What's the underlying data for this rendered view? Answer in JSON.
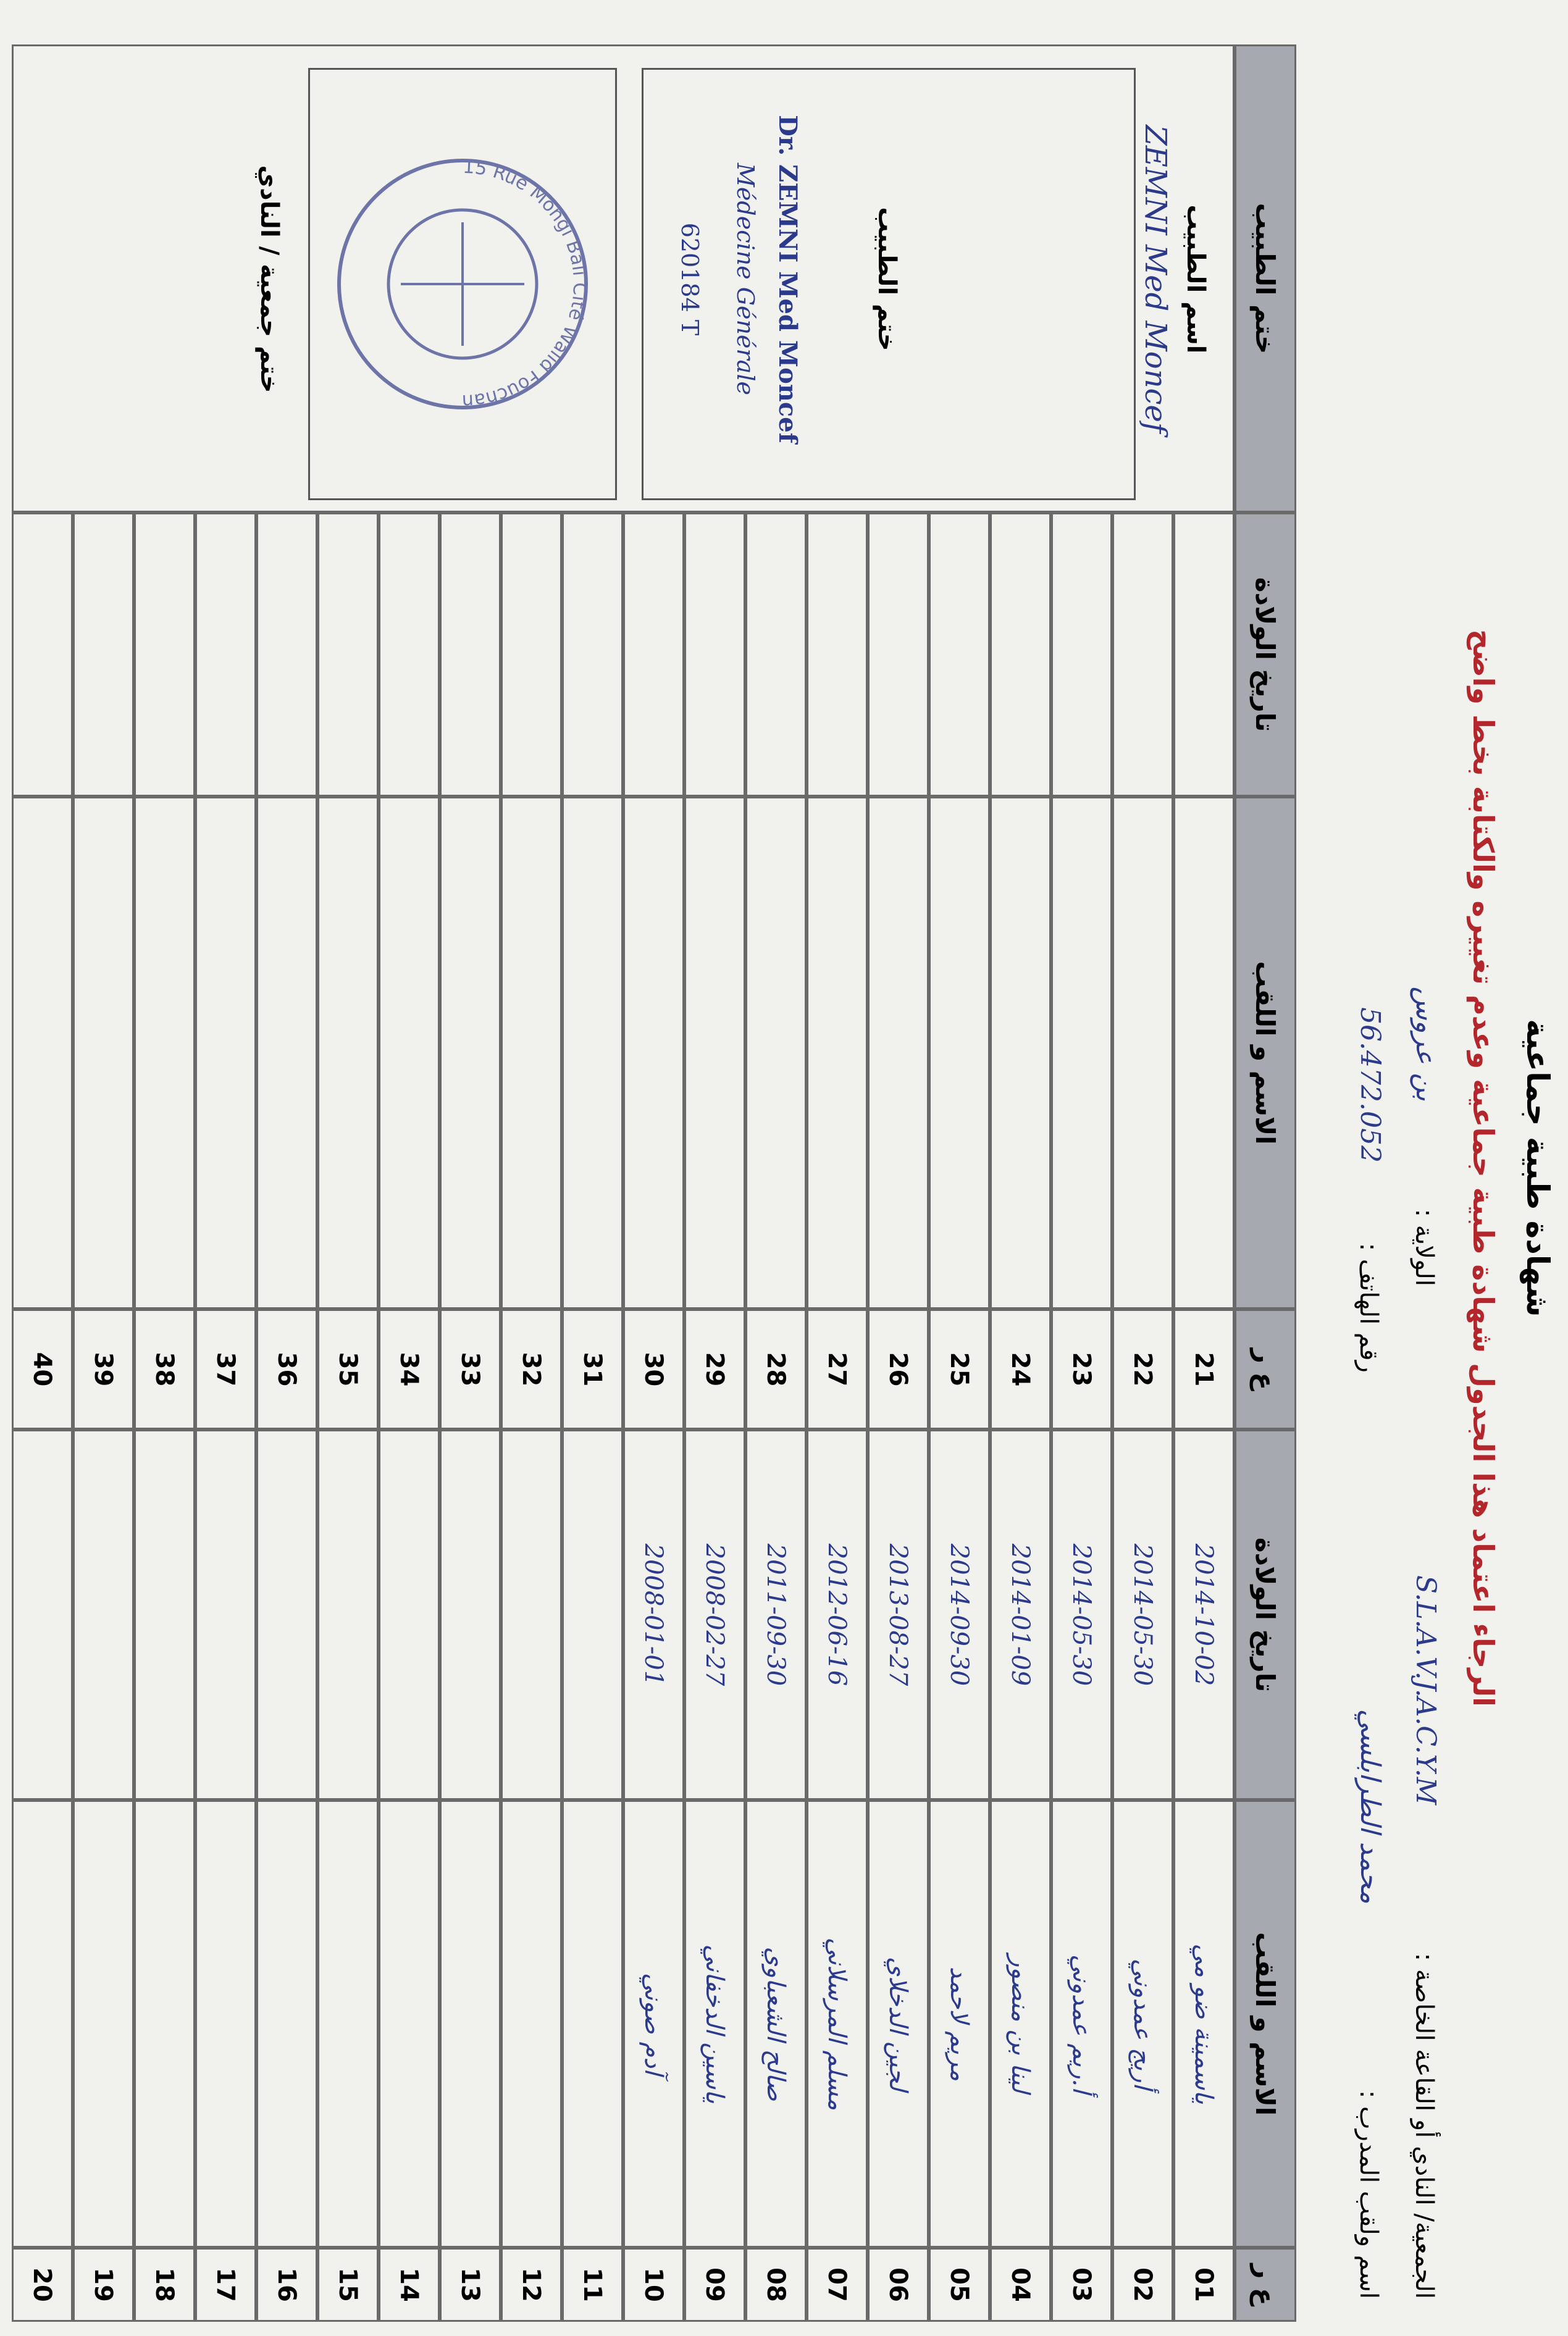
{
  "header": {
    "title": "شهادة طبية جماعية",
    "subtitle": "الرجاء اعتماد هذا الجدول شهادة طبية جماعية وعدم تغييره والكتابة بخط واضح",
    "club_label": "الجمعية/ النادي أو القاعة الخاصة :",
    "club_value": "S.L.A.V.J.A.C.Y.M",
    "state_label": "الولاية :",
    "state_value": "بن عروس",
    "coach_label": "اسم ولقب المدرب :",
    "coach_value": "محمد الطرابلسي",
    "phone_label": "رقم الهاتف :",
    "phone_value": "56.472.052"
  },
  "table": {
    "columns": {
      "num": "ع ر",
      "name": "الاسم و اللقب",
      "dob": "تاريخ الولادة",
      "doctor": "ختم الطبيب"
    },
    "rows": [
      {
        "num": "01",
        "name": "ياسمينة ضو مي",
        "dob": "2014-10-02"
      },
      {
        "num": "02",
        "name": "أريج عمدوني",
        "dob": "2014-05-30"
      },
      {
        "num": "03",
        "name": "أ.ريم عمدوني",
        "dob": "2014-05-30"
      },
      {
        "num": "04",
        "name": "لينا بن منصور",
        "dob": "2014-01-09"
      },
      {
        "num": "05",
        "name": "مريم لاحمد",
        "dob": "2014-09-30"
      },
      {
        "num": "06",
        "name": "لجين الدخلاي",
        "dob": "2013-08-27"
      },
      {
        "num": "07",
        "name": "مسلم المرسلاني",
        "dob": "2012-06-16"
      },
      {
        "num": "08",
        "name": "صالح الشعباوي",
        "dob": "2011-09-30"
      },
      {
        "num": "09",
        "name": "ياسين الدخفاني",
        "dob": "2008-02-27"
      },
      {
        "num": "10",
        "name": "آدم صوني",
        "dob": "2008-01-01"
      },
      {
        "num": "11"
      },
      {
        "num": "12"
      },
      {
        "num": "13"
      },
      {
        "num": "14"
      },
      {
        "num": "15"
      },
      {
        "num": "16"
      },
      {
        "num": "17"
      },
      {
        "num": "18"
      },
      {
        "num": "19"
      },
      {
        "num": "20"
      },
      {
        "num": "21"
      },
      {
        "num": "22"
      },
      {
        "num": "23"
      },
      {
        "num": "24"
      },
      {
        "num": "25"
      },
      {
        "num": "26"
      },
      {
        "num": "27"
      },
      {
        "num": "28"
      },
      {
        "num": "29"
      },
      {
        "num": "30"
      },
      {
        "num": "31"
      },
      {
        "num": "32"
      },
      {
        "num": "33"
      },
      {
        "num": "34"
      },
      {
        "num": "35"
      },
      {
        "num": "36"
      },
      {
        "num": "37"
      },
      {
        "num": "38"
      },
      {
        "num": "39"
      },
      {
        "num": "40"
      }
    ]
  },
  "doctor": {
    "name_label": "اسم الطبيب",
    "name_value": "ZEMNI Med Moncef",
    "stamp_label": "ختم الطبيب",
    "stamp_lines": [
      "Dr. ZEMNI Med Moncef",
      "Médecine Générale",
      "620184 T"
    ]
  },
  "club_stamp": {
    "label": "ختم جمعية / النادي",
    "text": "15 Rue Mongi Bali Cité Walid Fouchana"
  }
}
